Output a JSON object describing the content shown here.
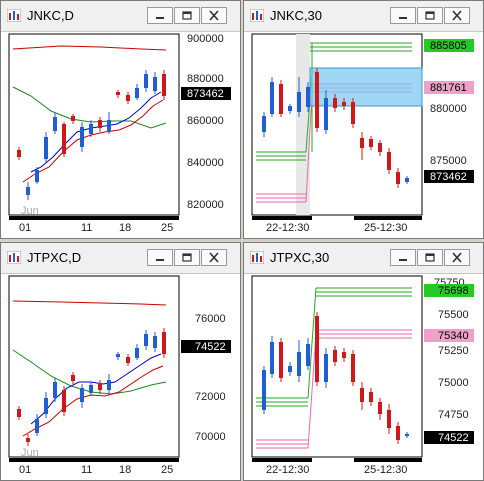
{
  "windows": [
    {
      "title": "JNKC,D",
      "price_labels": [
        "900000",
        "880000",
        "860000",
        "840000",
        "820000"
      ],
      "current_badge": "873462",
      "date_labels": [
        "01",
        "11",
        "18",
        "25"
      ],
      "month_label": "Jun"
    },
    {
      "title": "JNKC,30",
      "price_labels": [
        "880000",
        "875000"
      ],
      "upper_badge": "885805",
      "mid_badge": "881761",
      "current_badge": "873462",
      "date_labels": [
        "22-12:30",
        "25-12:30"
      ]
    },
    {
      "title": "JTPXC,D",
      "price_labels": [
        "76000",
        "74000",
        "72000",
        "70000"
      ],
      "current_badge": "74522",
      "date_labels": [
        "01",
        "11",
        "18",
        "25"
      ],
      "month_label": "Jun"
    },
    {
      "title": "JTPXC,30",
      "price_labels": [
        "75750",
        "75500",
        "75250",
        "75000",
        "74750"
      ],
      "upper_badge": "75698",
      "mid_badge": "75340",
      "current_badge": "74522",
      "date_labels": [
        "22-12:30",
        "25-12:30"
      ]
    }
  ],
  "colors": {
    "bullish": "#1e5fd6",
    "bearish": "#d01818",
    "ma_red": "#cc0000",
    "ma_blue": "#0000cc",
    "ma_green": "#1a8a1a",
    "level_green": "#22aa22",
    "level_pink": "#ee66aa",
    "zone_blue": "#7ec8f0",
    "badge_green": "#22cc22",
    "badge_pink": "#f0a0c8",
    "badge_black": "#000000"
  },
  "icons": [
    "chart-app-icon",
    "minimize-icon",
    "restore-icon",
    "close-icon"
  ]
}
